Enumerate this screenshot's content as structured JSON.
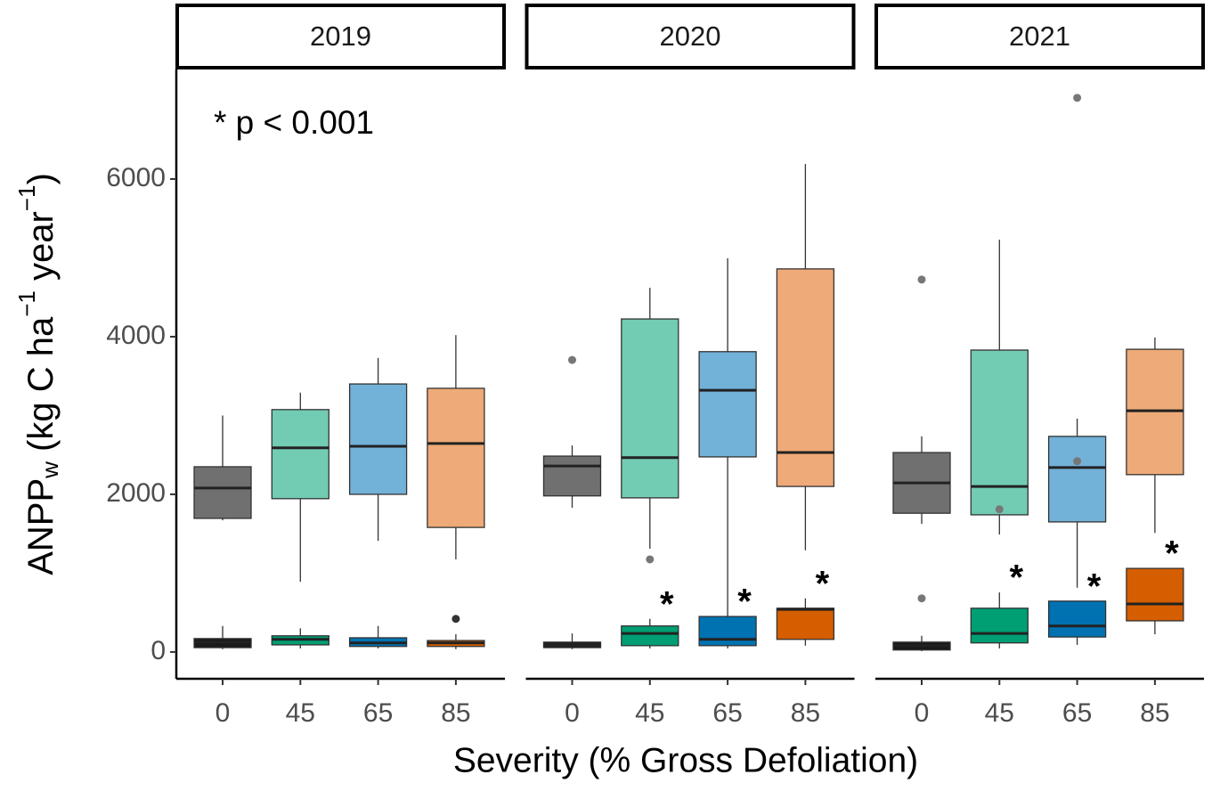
{
  "chart_data": {
    "type": "box",
    "ylabel": [
      "ANPP",
      "w",
      " (kg C ha",
      "−1",
      "  year",
      "−1",
      ")"
    ],
    "xlabel": "Severity (% Gross Defoliation)",
    "annotation": "* p < 0.001",
    "categories": [
      "0",
      "45",
      "65",
      "85"
    ],
    "ylim": [
      -340,
      7390
    ],
    "yticks": [
      0,
      2000,
      4000,
      6000
    ],
    "facets": [
      {
        "title": "2019",
        "boxes": [
          [
            {
              "color": "#707070",
              "min": 1670,
              "q1": 1695,
              "median": 2080,
              "q3": 2350,
              "max": 3000,
              "outliers": []
            },
            {
              "color": "#1a1a1a",
              "min": 35,
              "q1": 55,
              "median": 125,
              "q3": 170,
              "max": 330,
              "outliers": []
            }
          ],
          [
            {
              "color": "#72cbb3",
              "min": 890,
              "q1": 1945,
              "median": 2590,
              "q3": 3075,
              "max": 3290,
              "outliers": []
            },
            {
              "color": "#009e73",
              "min": 45,
              "q1": 90,
              "median": 160,
              "q3": 205,
              "max": 300,
              "outliers": []
            }
          ],
          [
            {
              "color": "#72b1d8",
              "min": 1410,
              "q1": 2000,
              "median": 2610,
              "q3": 3400,
              "max": 3730,
              "outliers": []
            },
            {
              "color": "#0072b2",
              "min": 45,
              "q1": 70,
              "median": 115,
              "q3": 180,
              "max": 330,
              "outliers": []
            }
          ],
          [
            {
              "color": "#eeaa78",
              "min": 1175,
              "q1": 1580,
              "median": 2645,
              "q3": 3345,
              "max": 4020,
              "outliers": []
            },
            {
              "color": "#d55e00",
              "min": 35,
              "q1": 70,
              "median": 115,
              "q3": 145,
              "max": 225,
              "outliers": [
                420
              ]
            }
          ]
        ]
      },
      {
        "title": "2020",
        "boxes": [
          [
            {
              "color": "#707070",
              "min": 1830,
              "q1": 1980,
              "median": 2360,
              "q3": 2485,
              "max": 2620,
              "outliers": [
                3705
              ]
            },
            {
              "color": "#1a1a1a",
              "min": 35,
              "q1": 55,
              "median": 90,
              "q3": 125,
              "max": 235,
              "outliers": []
            }
          ],
          [
            {
              "color": "#72cbb3",
              "min": 1310,
              "q1": 1955,
              "median": 2465,
              "q3": 4225,
              "max": 4620,
              "outliers": [
                1175
              ]
            },
            {
              "color": "#009e73",
              "min": 45,
              "q1": 80,
              "median": 235,
              "q3": 330,
              "max": 420,
              "outliers": [],
              "label": "*"
            }
          ],
          [
            {
              "color": "#72b1d8",
              "min": 100,
              "q1": 2475,
              "median": 3320,
              "q3": 3810,
              "max": 4995,
              "outliers": []
            },
            {
              "color": "#0072b2",
              "min": 45,
              "q1": 80,
              "median": 160,
              "q3": 450,
              "max": 450,
              "outliers": [],
              "label": "*"
            }
          ],
          [
            {
              "color": "#eeaa78",
              "min": 1290,
              "q1": 2100,
              "median": 2530,
              "q3": 4860,
              "max": 6190,
              "outliers": []
            },
            {
              "color": "#d55e00",
              "min": 80,
              "q1": 160,
              "median": 540,
              "q3": 555,
              "max": 680,
              "outliers": [],
              "label": "*"
            }
          ]
        ]
      },
      {
        "title": "2021",
        "boxes": [
          [
            {
              "color": "#707070",
              "min": 1625,
              "q1": 1760,
              "median": 2145,
              "q3": 2530,
              "max": 2735,
              "outliers": [
                4725,
                680
              ]
            },
            {
              "color": "#1a1a1a",
              "min": 10,
              "q1": 25,
              "median": 80,
              "q3": 125,
              "max": 205,
              "outliers": []
            }
          ],
          [
            {
              "color": "#72cbb3",
              "min": 1490,
              "q1": 1740,
              "median": 2100,
              "q3": 3830,
              "max": 5230,
              "outliers": [
                1810
              ]
            },
            {
              "color": "#009e73",
              "min": 45,
              "q1": 115,
              "median": 235,
              "q3": 555,
              "max": 755,
              "outliers": [],
              "label": "*"
            }
          ],
          [
            {
              "color": "#72b1d8",
              "min": 815,
              "q1": 1650,
              "median": 2340,
              "q3": 2735,
              "max": 2960,
              "outliers": [
                7030,
                2420
              ]
            },
            {
              "color": "#0072b2",
              "min": 90,
              "q1": 190,
              "median": 330,
              "q3": 645,
              "max": 645,
              "outliers": [],
              "label": "*"
            }
          ],
          [
            {
              "color": "#eeaa78",
              "min": 1510,
              "q1": 2250,
              "median": 3060,
              "q3": 3840,
              "max": 3990,
              "outliers": []
            },
            {
              "color": "#d55e00",
              "min": 225,
              "q1": 395,
              "median": 610,
              "q3": 1060,
              "max": 1060,
              "outliers": [],
              "label": "*"
            }
          ]
        ]
      }
    ]
  }
}
